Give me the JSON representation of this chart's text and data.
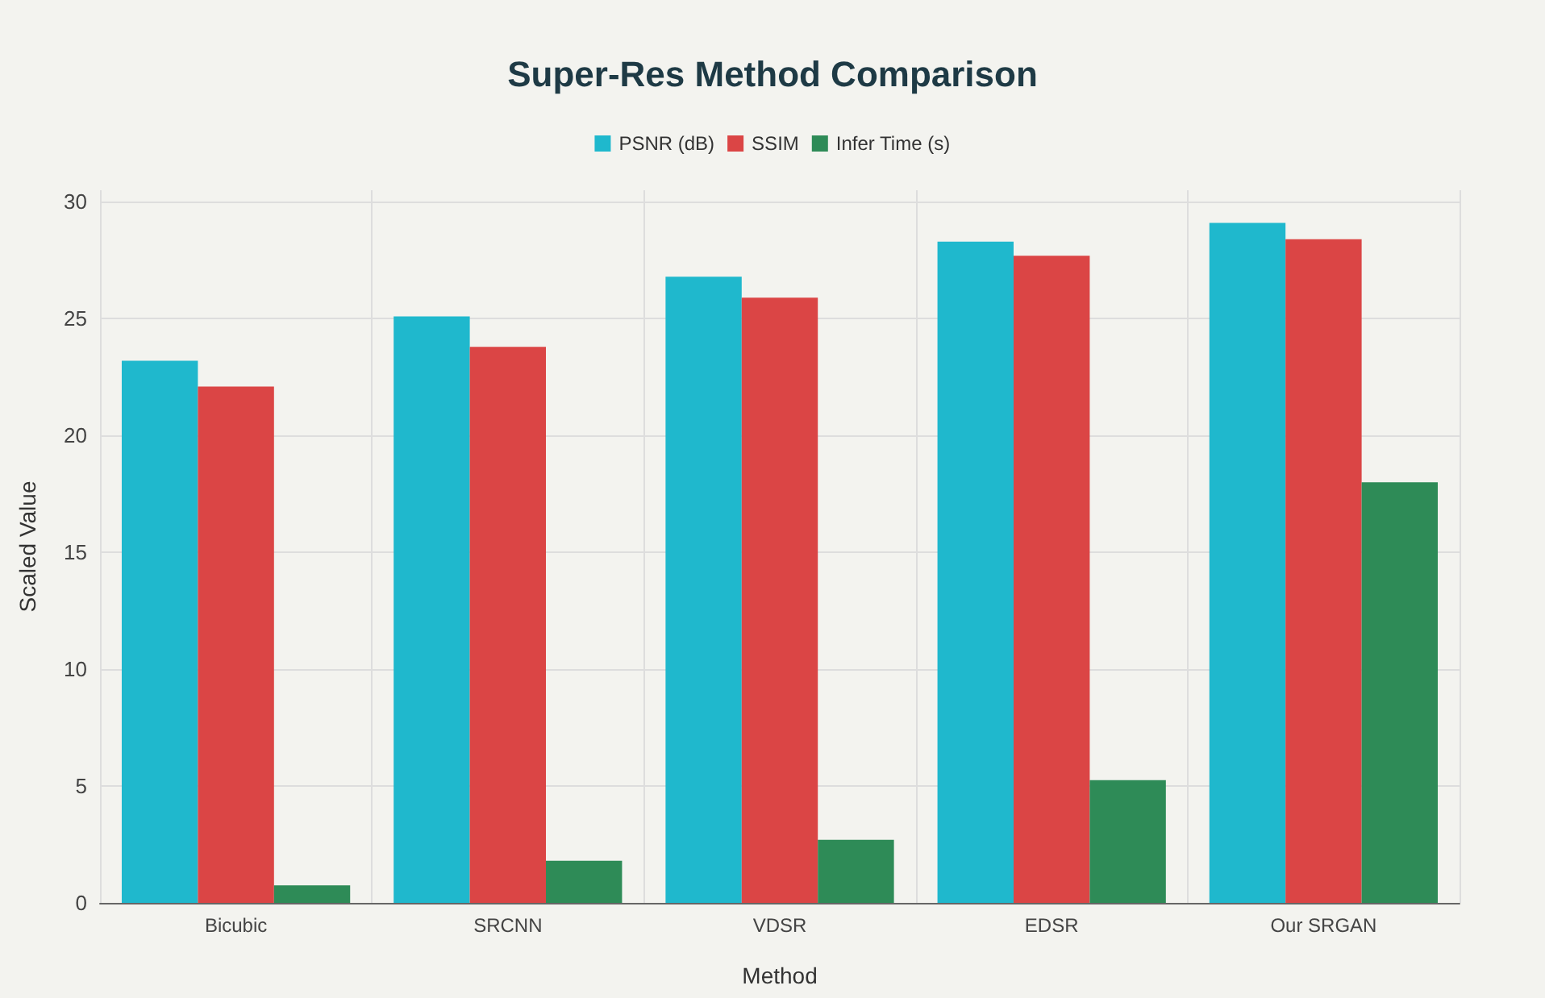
{
  "chart_data": {
    "type": "bar",
    "title": "Super-Res Method Comparison",
    "xlabel": "Method",
    "ylabel": "Scaled Value",
    "categories": [
      "Bicubic",
      "SRCNN",
      "VDSR",
      "EDSR",
      "Our SRGAN"
    ],
    "series": [
      {
        "name": "PSNR (dB)",
        "color": "#1fb8cd",
        "values": [
          23.2,
          25.1,
          26.8,
          28.3,
          29.1
        ]
      },
      {
        "name": "SSIM",
        "color": "#db4545",
        "values": [
          22.1,
          23.8,
          25.9,
          27.7,
          28.4
        ]
      },
      {
        "name": "Infer Time (s)",
        "color": "#2e8b57",
        "values": [
          0.75,
          1.8,
          2.7,
          5.25,
          18
        ]
      }
    ],
    "ylim": [
      0,
      30.5
    ],
    "yticks": [
      0,
      5,
      10,
      15,
      20,
      25,
      30
    ],
    "grid": true,
    "legend": "top"
  }
}
